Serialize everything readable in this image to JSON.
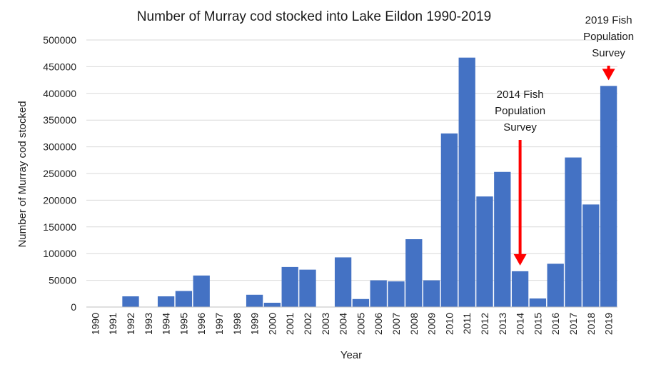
{
  "chart_data": {
    "type": "bar",
    "title": "Number of Murray cod stocked into Lake Eildon 1990-2019",
    "xlabel": "Year",
    "ylabel": "Number of Murray cod stocked",
    "ylim": [
      0,
      500000
    ],
    "yticks": [
      "0",
      "50000",
      "100000",
      "150000",
      "200000",
      "250000",
      "300000",
      "350000",
      "400000",
      "450000",
      "500000"
    ],
    "grid": true,
    "bar_color": "#4472C4",
    "arrow_color": "#FF0000",
    "categories": [
      "1990",
      "1991",
      "1992",
      "1993",
      "1994",
      "1995",
      "1996",
      "1997",
      "1998",
      "1999",
      "2000",
      "2001",
      "2002",
      "2003",
      "2004",
      "2005",
      "2006",
      "2007",
      "2008",
      "2009",
      "2010",
      "2011",
      "2012",
      "2013",
      "2014",
      "2015",
      "2016",
      "2017",
      "2018",
      "2019"
    ],
    "values": [
      0,
      0,
      20000,
      0,
      20000,
      30000,
      59000,
      0,
      0,
      23000,
      8000,
      75000,
      70000,
      0,
      93000,
      15000,
      50000,
      48000,
      127000,
      50000,
      325000,
      467000,
      207000,
      253000,
      67000,
      16000,
      81000,
      280000,
      192000,
      414000
    ],
    "annotations": [
      {
        "year": "2014",
        "lines": [
          "2014 Fish",
          "Population",
          "Survey"
        ]
      },
      {
        "year": "2019",
        "lines": [
          "2019 Fish",
          "Population",
          "Survey"
        ]
      }
    ]
  }
}
